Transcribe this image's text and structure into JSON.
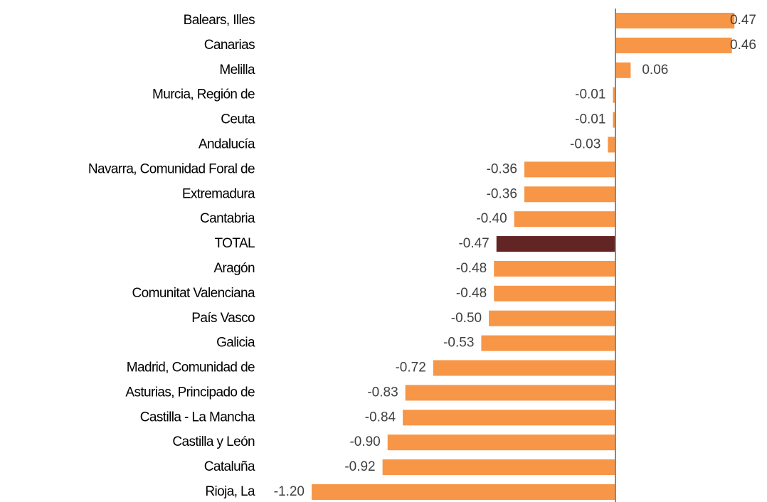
{
  "chart_data": {
    "type": "hbar",
    "categories": [
      "Balears, Illes",
      "Canarias",
      "Melilla",
      "Murcia, Región de",
      "Ceuta",
      "Andalucía",
      "Navarra, Comunidad Foral de",
      "Extremadura",
      "Cantabria",
      "TOTAL",
      "Aragón",
      "Comunitat Valenciana",
      "País Vasco",
      "Galicia",
      "Madrid, Comunidad de",
      "Asturias, Principado de",
      "Castilla - La Mancha",
      "Castilla y León",
      "Cataluña",
      "Rioja, La"
    ],
    "values": [
      0.47,
      0.46,
      0.06,
      -0.01,
      -0.01,
      -0.03,
      -0.36,
      -0.36,
      -0.4,
      -0.47,
      -0.48,
      -0.48,
      -0.5,
      -0.53,
      -0.72,
      -0.83,
      -0.84,
      -0.9,
      -0.92,
      -1.2
    ],
    "value_labels": [
      "0.47",
      "0.46",
      "0.06",
      "-0.01",
      "-0.01",
      "-0.03",
      "-0.36",
      "-0.36",
      "-0.40",
      "-0.47",
      "-0.48",
      "-0.48",
      "-0.50",
      "-0.53",
      "-0.72",
      "-0.83",
      "-0.84",
      "-0.90",
      "-0.92",
      "-1.20"
    ],
    "colors": [
      "#f79646",
      "#f79646",
      "#f79646",
      "#f79646",
      "#f79646",
      "#f79646",
      "#f79646",
      "#f79646",
      "#f79646",
      "#632523",
      "#f79646",
      "#f79646",
      "#f79646",
      "#f79646",
      "#f79646",
      "#f79646",
      "#f79646",
      "#f79646",
      "#f79646",
      "#f79646"
    ]
  }
}
